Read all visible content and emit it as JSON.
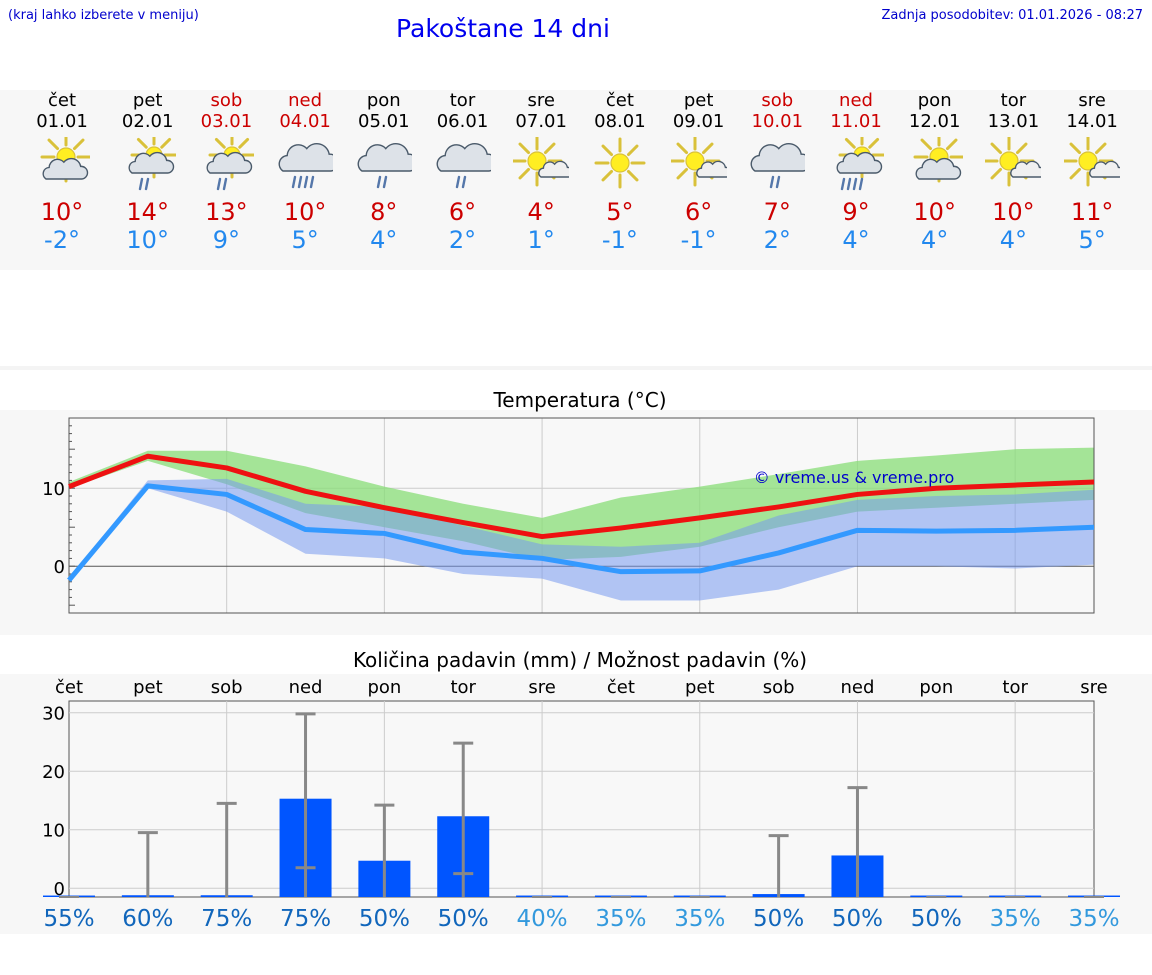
{
  "header": {
    "hint": "(kraj lahko izberete v meniju)",
    "title": "Pakoštane 14 dni",
    "updated": "Zadnja posodobitev: 01.01.2026 - 08:27"
  },
  "days": [
    {
      "name": "čet",
      "date": "01.01",
      "weekend": false,
      "icon": "sun-cloud-icon",
      "max": "10°",
      "min": "-2°"
    },
    {
      "name": "pet",
      "date": "02.01",
      "weekend": false,
      "icon": "sun-cloud-rain-icon",
      "max": "14°",
      "min": "10°"
    },
    {
      "name": "sob",
      "date": "03.01",
      "weekend": true,
      "icon": "sun-cloud-rain-icon",
      "max": "13°",
      "min": "9°"
    },
    {
      "name": "ned",
      "date": "04.01",
      "weekend": true,
      "icon": "cloud-heavy-rain-icon",
      "max": "10°",
      "min": "5°"
    },
    {
      "name": "pon",
      "date": "05.01",
      "weekend": false,
      "icon": "cloud-rain-icon",
      "max": "8°",
      "min": "4°"
    },
    {
      "name": "tor",
      "date": "06.01",
      "weekend": false,
      "icon": "cloud-rain-icon",
      "max": "6°",
      "min": "2°"
    },
    {
      "name": "sre",
      "date": "07.01",
      "weekend": false,
      "icon": "sun-small-cloud-icon",
      "max": "4°",
      "min": "1°"
    },
    {
      "name": "čet",
      "date": "08.01",
      "weekend": false,
      "icon": "sun-icon",
      "max": "5°",
      "min": "-1°"
    },
    {
      "name": "pet",
      "date": "09.01",
      "weekend": false,
      "icon": "sun-small-cloud-icon",
      "max": "6°",
      "min": "-1°"
    },
    {
      "name": "sob",
      "date": "10.01",
      "weekend": true,
      "icon": "cloud-rain-icon",
      "max": "7°",
      "min": "2°"
    },
    {
      "name": "ned",
      "date": "11.01",
      "weekend": true,
      "icon": "sun-cloud-heavy-rain-icon",
      "max": "9°",
      "min": "4°"
    },
    {
      "name": "pon",
      "date": "12.01",
      "weekend": false,
      "icon": "sun-cloud-icon",
      "max": "10°",
      "min": "4°"
    },
    {
      "name": "tor",
      "date": "13.01",
      "weekend": false,
      "icon": "sun-small-cloud-icon",
      "max": "10°",
      "min": "4°"
    },
    {
      "name": "sre",
      "date": "14.01",
      "weekend": false,
      "icon": "sun-small-cloud-icon",
      "max": "11°",
      "min": "5°"
    }
  ],
  "colors": {
    "max_line": "#ee1111",
    "min_line": "#3399ff",
    "max_band": "#88dd77",
    "min_band": "#7799ee",
    "bar": "#0055ff",
    "whisker": "#888888",
    "prob_high": "#1166bb",
    "prob_low": "#3399dd",
    "credit": "#0000cc"
  },
  "chart_data": [
    {
      "type": "line",
      "title": "Temperatura (°C)",
      "credit": "© vreme.us & vreme.pro",
      "ylim": [
        -6,
        19
      ],
      "yticks": [
        0,
        10
      ],
      "x": [
        0,
        1,
        2,
        3,
        4,
        5,
        6,
        7,
        8,
        9,
        10,
        11,
        12,
        13
      ],
      "series": [
        {
          "name": "max",
          "values": [
            10.2,
            14.1,
            12.6,
            9.6,
            7.5,
            5.6,
            3.8,
            4.9,
            6.2,
            7.6,
            9.2,
            10.0,
            10.4,
            10.8
          ]
        },
        {
          "name": "min",
          "values": [
            -1.8,
            10.3,
            9.2,
            4.7,
            4.2,
            1.8,
            1.0,
            -0.7,
            -0.6,
            1.7,
            4.6,
            4.5,
            4.6,
            5.0
          ]
        }
      ],
      "bands": [
        {
          "name": "max_range",
          "low": [
            10.0,
            13.5,
            10.5,
            6.8,
            5.0,
            3.2,
            0.8,
            1.2,
            2.5,
            5.0,
            7.0,
            7.5,
            8.0,
            8.5
          ],
          "high": [
            10.8,
            14.8,
            14.8,
            12.8,
            10.2,
            8.0,
            6.2,
            8.8,
            10.2,
            11.8,
            13.5,
            14.2,
            15.0,
            15.2
          ]
        },
        {
          "name": "min_range",
          "low": [
            -2.0,
            10.0,
            7.0,
            1.6,
            1.0,
            -1.0,
            -1.6,
            -4.4,
            -4.4,
            -3.0,
            0.0,
            0.0,
            -0.3,
            0.2
          ],
          "high": [
            -1.5,
            11.0,
            11.2,
            8.0,
            7.6,
            5.2,
            2.8,
            2.5,
            3.0,
            6.5,
            8.5,
            9.0,
            9.2,
            9.8
          ]
        }
      ]
    },
    {
      "type": "bar",
      "title": "Količina padavin (mm) / Možnost padavin (%)",
      "categories": [
        "čet",
        "pet",
        "sob",
        "ned",
        "pon",
        "tor",
        "sre",
        "čet",
        "pet",
        "sob",
        "ned",
        "pon",
        "tor",
        "sre"
      ],
      "ylim": [
        -1.5,
        32
      ],
      "yticks": [
        0,
        10,
        20,
        30
      ],
      "values": [
        0,
        0.3,
        0.3,
        16.8,
        6.2,
        13.8,
        0,
        0,
        0,
        0.5,
        7.1,
        0,
        0,
        0
      ],
      "error_low": [
        0,
        0,
        0,
        3.5,
        0,
        2.5,
        0,
        0,
        0,
        0,
        0,
        0,
        0,
        0
      ],
      "error_high": [
        0,
        9.5,
        14.5,
        29.8,
        14.2,
        24.8,
        0,
        0,
        0,
        9.0,
        17.2,
        0,
        0,
        0
      ],
      "probability": [
        "55%",
        "60%",
        "75%",
        "75%",
        "50%",
        "50%",
        "40%",
        "35%",
        "35%",
        "50%",
        "50%",
        "50%",
        "35%",
        "35%"
      ]
    }
  ]
}
